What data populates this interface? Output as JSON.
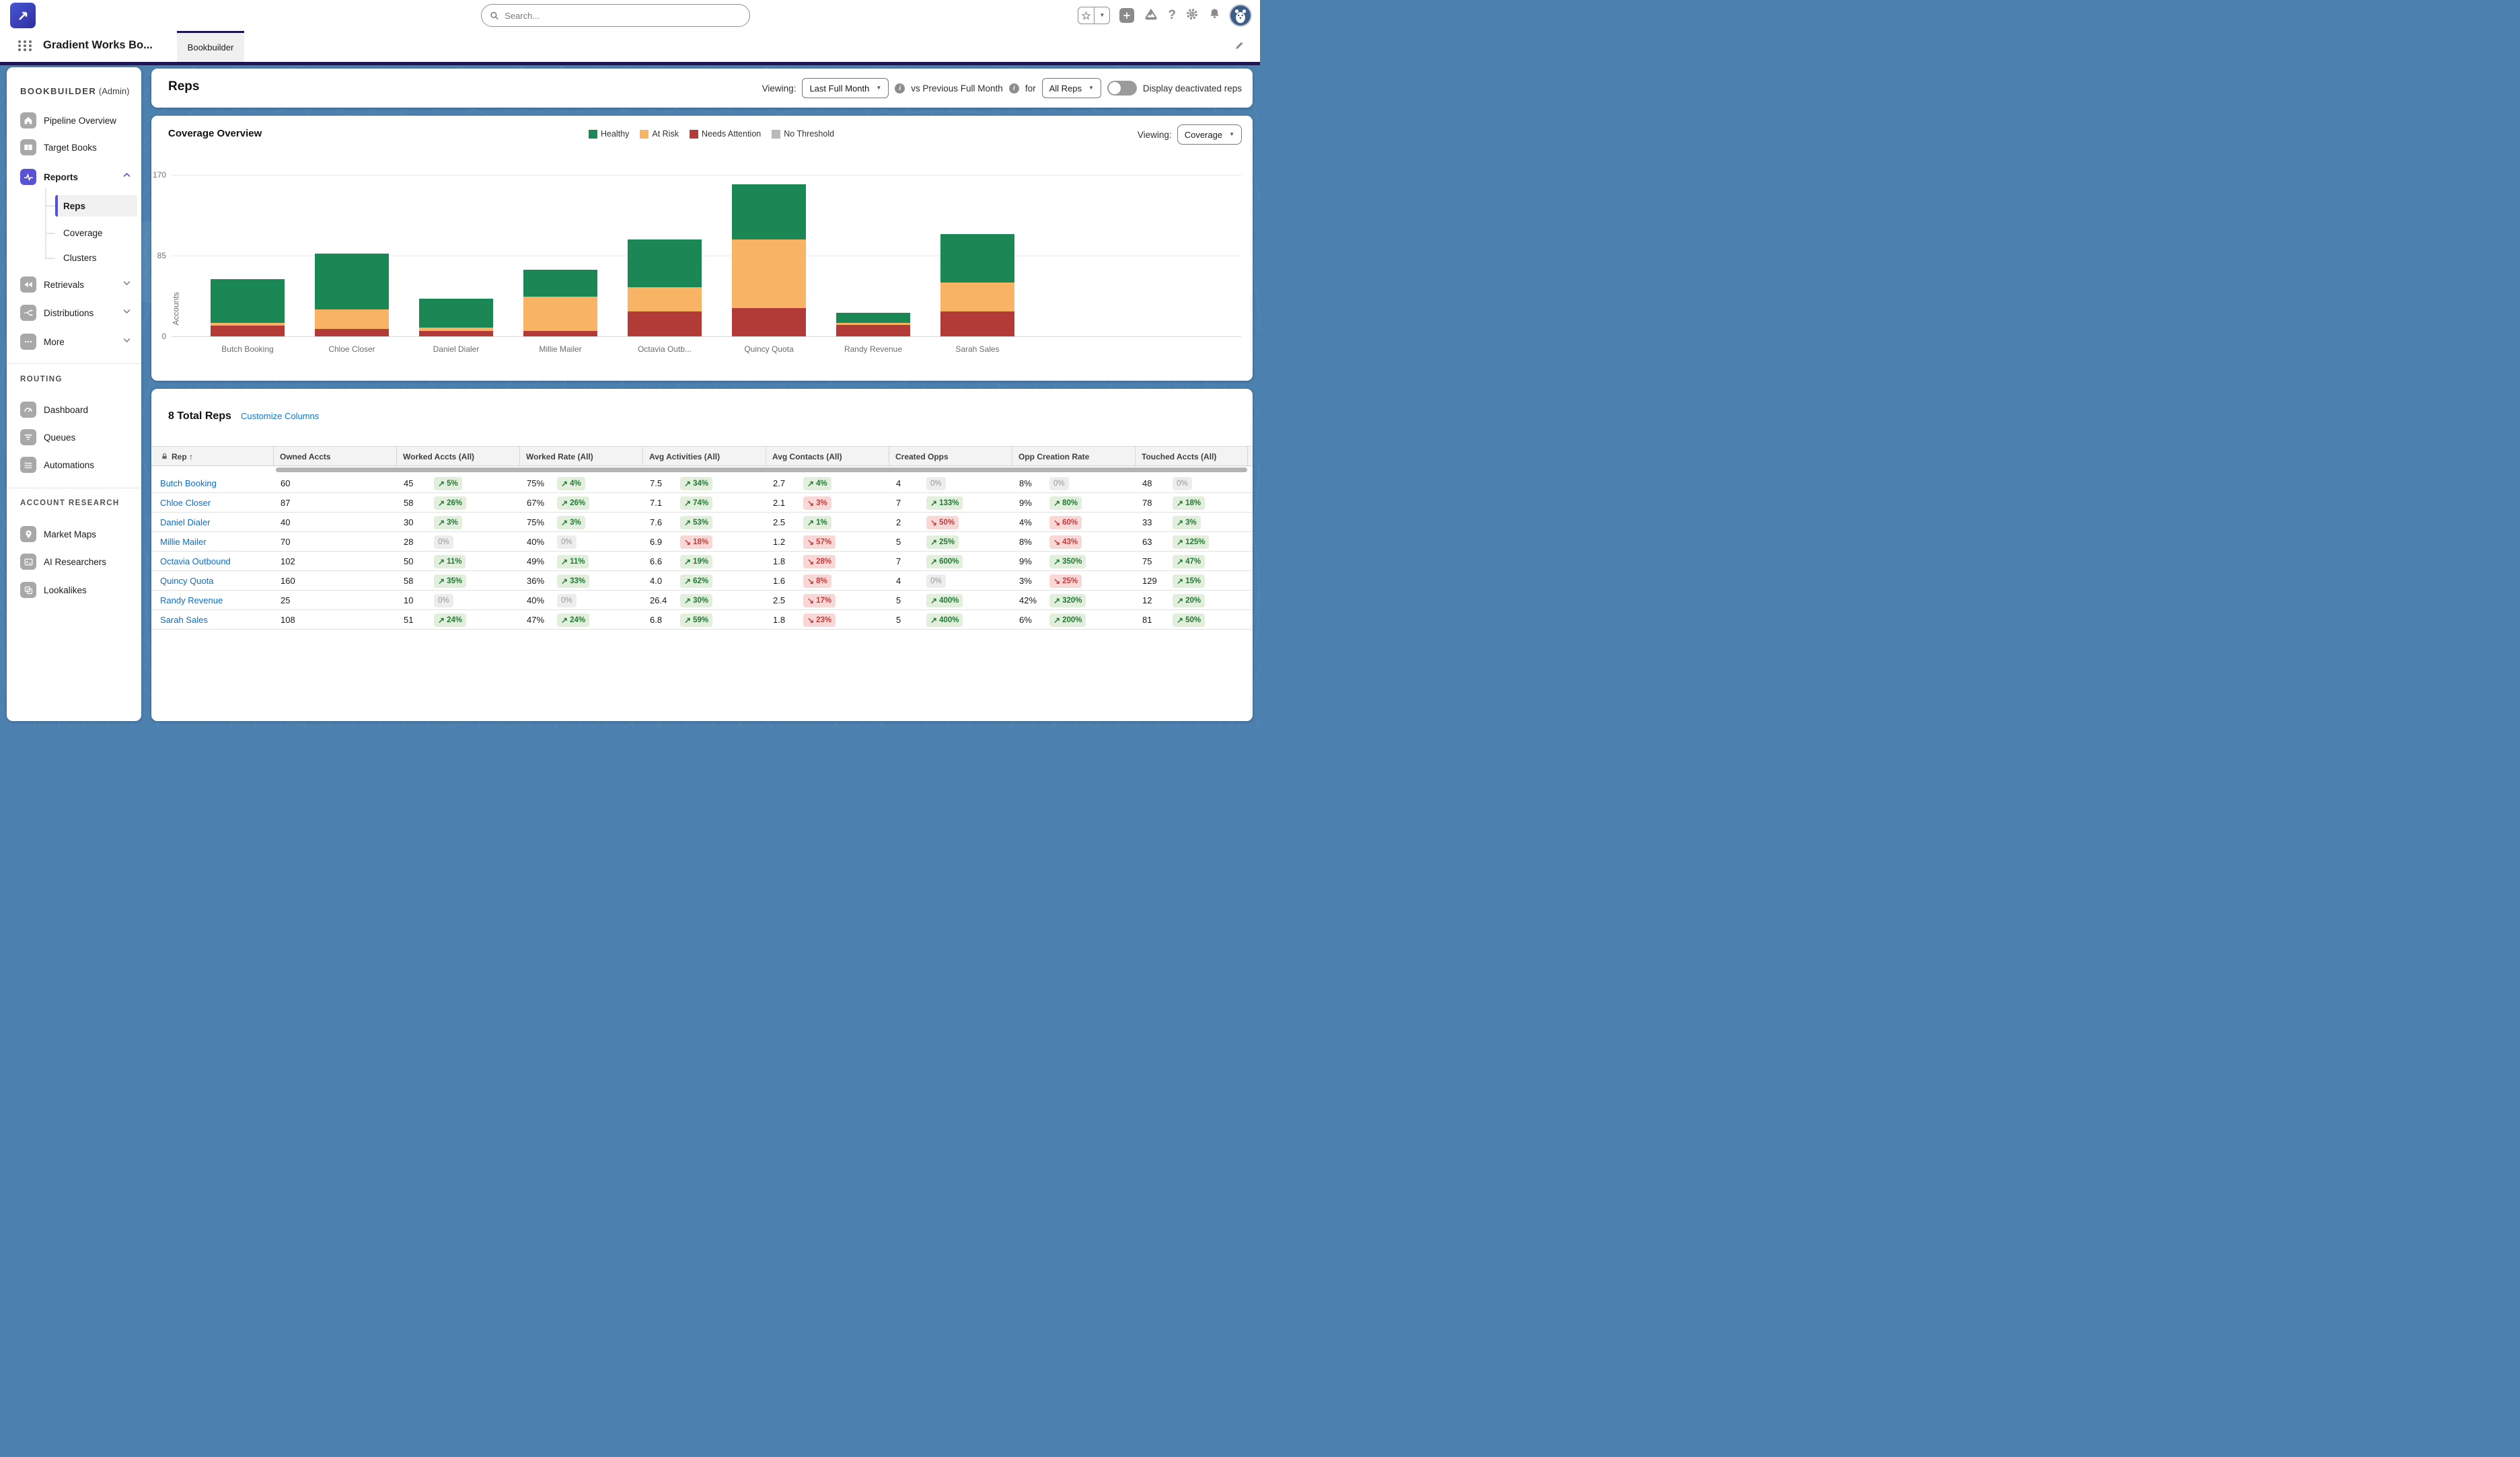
{
  "topbar": {
    "search_placeholder": "Search...",
    "icons": [
      "favorites-star-icon",
      "favorites-caret-icon",
      "add-icon",
      "trailhead-icon",
      "help-icon",
      "setup-gear-icon",
      "notifications-bell-icon",
      "avatar"
    ]
  },
  "nav": {
    "app_name": "Gradient Works Bo...",
    "tab": "Bookbuilder"
  },
  "sidebar": {
    "title": "BOOKBUILDER",
    "admin": "(Admin)",
    "items": [
      {
        "label": "Pipeline Overview",
        "icon": "home-icon"
      },
      {
        "label": "Target Books",
        "icon": "book-icon"
      },
      {
        "label": "Reports",
        "icon": "pulse-icon",
        "expanded": true,
        "children": [
          {
            "label": "Reps",
            "selected": true
          },
          {
            "label": "Coverage"
          },
          {
            "label": "Clusters"
          }
        ]
      },
      {
        "label": "Retrievals",
        "icon": "rewind-icon"
      },
      {
        "label": "Distributions",
        "icon": "split-arrows-icon"
      },
      {
        "label": "More",
        "icon": "ellipsis-icon"
      }
    ],
    "routing": {
      "title": "ROUTING",
      "items": [
        {
          "label": "Dashboard",
          "icon": "gauge-icon"
        },
        {
          "label": "Queues",
          "icon": "funnel-icon"
        },
        {
          "label": "Automations",
          "icon": "waves-icon"
        }
      ]
    },
    "account_research": {
      "title": "ACCOUNT RESEARCH",
      "items": [
        {
          "label": "Market Maps",
          "icon": "map-pin-icon"
        },
        {
          "label": "AI Researchers",
          "icon": "terminal-icon"
        },
        {
          "label": "Lookalikes",
          "icon": "overlap-squares-icon"
        }
      ]
    }
  },
  "page_header": {
    "title": "Reps",
    "viewing_label": "Viewing:",
    "period_value": "Last Full Month",
    "comparison_text": "vs Previous Full Month",
    "for_label": "for",
    "scope_value": "All Reps",
    "toggle_label": "Display deactivated reps",
    "toggle_on": false
  },
  "chart_card": {
    "title": "Coverage Overview",
    "viewing_label": "Viewing:",
    "view_value": "Coverage",
    "legend": [
      {
        "label": "Healthy",
        "color": "#1a8754"
      },
      {
        "label": "At Risk",
        "color": "#f9b364"
      },
      {
        "label": "Needs Attention",
        "color": "#b23b38"
      },
      {
        "label": "No Threshold",
        "color": "#b9b9b9"
      }
    ]
  },
  "chart_data": {
    "type": "bar",
    "subtype": "stacked",
    "title": "Coverage Overview",
    "categories": [
      "Butch Booking",
      "Chloe Closer",
      "Daniel Dialer",
      "Millie Mailer",
      "Octavia Outb...",
      "Quincy Quota",
      "Randy Revenue",
      "Sarah Sales"
    ],
    "series": [
      {
        "name": "Needs Attention",
        "color": "#b23b38",
        "values": [
          11,
          8,
          6,
          6,
          26,
          30,
          12,
          26
        ]
      },
      {
        "name": "At Risk",
        "color": "#f9b364",
        "values": [
          3,
          20,
          3,
          36,
          26,
          72,
          2,
          31
        ]
      },
      {
        "name": "Healthy",
        "color": "#1a8754",
        "values": [
          46,
          59,
          31,
          28,
          50,
          58,
          11,
          51
        ]
      }
    ],
    "totals": [
      60,
      87,
      40,
      70,
      102,
      160,
      25,
      108
    ],
    "xlabel": "",
    "ylabel": "Accounts",
    "yticks": [
      0,
      85,
      170
    ],
    "ylim": [
      0,
      170
    ],
    "grid": true,
    "legend_position": "top-center"
  },
  "table": {
    "total_label": "8 Total Reps",
    "customize_label": "Customize Columns",
    "sort_indicator": "↑",
    "columns": [
      "Rep",
      "Owned Accts",
      "Worked Accts (All)",
      "Worked Rate (All)",
      "Avg Activities (All)",
      "Avg Contacts (All)",
      "Created Opps",
      "Opp Creation Rate",
      "Touched Accts (All)"
    ],
    "rows": [
      {
        "rep": "Butch Booking",
        "cells": [
          {
            "v": "60"
          },
          {
            "v": "45",
            "d": "up",
            "p": "5%"
          },
          {
            "v": "75%",
            "d": "up",
            "p": "4%"
          },
          {
            "v": "7.5",
            "d": "up",
            "p": "34%"
          },
          {
            "v": "2.7",
            "d": "up",
            "p": "4%"
          },
          {
            "v": "4",
            "d": "flat",
            "p": "0%"
          },
          {
            "v": "8%",
            "d": "flat",
            "p": "0%"
          },
          {
            "v": "48",
            "d": "flat",
            "p": "0%"
          }
        ]
      },
      {
        "rep": "Chloe Closer",
        "cells": [
          {
            "v": "87"
          },
          {
            "v": "58",
            "d": "up",
            "p": "26%"
          },
          {
            "v": "67%",
            "d": "up",
            "p": "26%"
          },
          {
            "v": "7.1",
            "d": "up",
            "p": "74%"
          },
          {
            "v": "2.1",
            "d": "down",
            "p": "3%"
          },
          {
            "v": "7",
            "d": "up",
            "p": "133%"
          },
          {
            "v": "9%",
            "d": "up",
            "p": "80%"
          },
          {
            "v": "78",
            "d": "up",
            "p": "18%"
          }
        ]
      },
      {
        "rep": "Daniel Dialer",
        "cells": [
          {
            "v": "40"
          },
          {
            "v": "30",
            "d": "up",
            "p": "3%"
          },
          {
            "v": "75%",
            "d": "up",
            "p": "3%"
          },
          {
            "v": "7.6",
            "d": "up",
            "p": "53%"
          },
          {
            "v": "2.5",
            "d": "up",
            "p": "1%"
          },
          {
            "v": "2",
            "d": "down",
            "p": "50%"
          },
          {
            "v": "4%",
            "d": "down",
            "p": "60%"
          },
          {
            "v": "33",
            "d": "up",
            "p": "3%"
          }
        ]
      },
      {
        "rep": "Millie Mailer",
        "cells": [
          {
            "v": "70"
          },
          {
            "v": "28",
            "d": "flat",
            "p": "0%"
          },
          {
            "v": "40%",
            "d": "flat",
            "p": "0%"
          },
          {
            "v": "6.9",
            "d": "down",
            "p": "18%"
          },
          {
            "v": "1.2",
            "d": "down",
            "p": "57%"
          },
          {
            "v": "5",
            "d": "up",
            "p": "25%"
          },
          {
            "v": "8%",
            "d": "down",
            "p": "43%"
          },
          {
            "v": "63",
            "d": "up",
            "p": "125%"
          }
        ]
      },
      {
        "rep": "Octavia Outbound",
        "cells": [
          {
            "v": "102"
          },
          {
            "v": "50",
            "d": "up",
            "p": "11%"
          },
          {
            "v": "49%",
            "d": "up",
            "p": "11%"
          },
          {
            "v": "6.6",
            "d": "up",
            "p": "19%"
          },
          {
            "v": "1.8",
            "d": "down",
            "p": "28%"
          },
          {
            "v": "7",
            "d": "up",
            "p": "600%"
          },
          {
            "v": "9%",
            "d": "up",
            "p": "350%"
          },
          {
            "v": "75",
            "d": "up",
            "p": "47%"
          }
        ]
      },
      {
        "rep": "Quincy Quota",
        "cells": [
          {
            "v": "160"
          },
          {
            "v": "58",
            "d": "up",
            "p": "35%"
          },
          {
            "v": "36%",
            "d": "up",
            "p": "33%"
          },
          {
            "v": "4.0",
            "d": "up",
            "p": "62%"
          },
          {
            "v": "1.6",
            "d": "down",
            "p": "8%"
          },
          {
            "v": "4",
            "d": "flat",
            "p": "0%"
          },
          {
            "v": "3%",
            "d": "down",
            "p": "25%"
          },
          {
            "v": "129",
            "d": "up",
            "p": "15%"
          }
        ]
      },
      {
        "rep": "Randy Revenue",
        "cells": [
          {
            "v": "25"
          },
          {
            "v": "10",
            "d": "flat",
            "p": "0%"
          },
          {
            "v": "40%",
            "d": "flat",
            "p": "0%"
          },
          {
            "v": "26.4",
            "d": "up",
            "p": "30%"
          },
          {
            "v": "2.5",
            "d": "down",
            "p": "17%"
          },
          {
            "v": "5",
            "d": "up",
            "p": "400%"
          },
          {
            "v": "42%",
            "d": "up",
            "p": "320%"
          },
          {
            "v": "12",
            "d": "up",
            "p": "20%"
          }
        ]
      },
      {
        "rep": "Sarah Sales",
        "cells": [
          {
            "v": "108"
          },
          {
            "v": "51",
            "d": "up",
            "p": "24%"
          },
          {
            "v": "47%",
            "d": "up",
            "p": "24%"
          },
          {
            "v": "6.8",
            "d": "up",
            "p": "59%"
          },
          {
            "v": "1.8",
            "d": "down",
            "p": "23%"
          },
          {
            "v": "5",
            "d": "up",
            "p": "400%"
          },
          {
            "v": "6%",
            "d": "up",
            "p": "200%"
          },
          {
            "v": "81",
            "d": "up",
            "p": "50%"
          }
        ]
      }
    ]
  }
}
